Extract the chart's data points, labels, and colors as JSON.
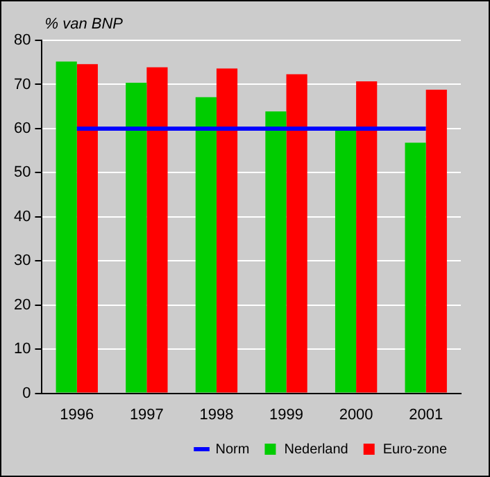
{
  "chart_data": {
    "type": "bar",
    "ylabel": "% van BNP",
    "categories": [
      "1996",
      "1997",
      "1998",
      "1999",
      "2000",
      "2001"
    ],
    "series": [
      {
        "name": "Nederland",
        "color": "#00cc00",
        "values": [
          75.2,
          70.4,
          67.1,
          63.9,
          59.6,
          56.8
        ]
      },
      {
        "name": "Euro-zone",
        "color": "#ff0000",
        "values": [
          74.6,
          73.9,
          73.6,
          72.3,
          70.7,
          68.8
        ]
      },
      {
        "name": "Norm",
        "type": "line",
        "color": "#0000ff",
        "values": [
          60,
          60,
          60,
          60,
          60,
          60
        ]
      }
    ],
    "ylim": [
      0,
      80
    ],
    "yticks": [
      0,
      10,
      20,
      30,
      40,
      50,
      60,
      70,
      80
    ],
    "grid": "y",
    "legend": "bottom right",
    "marker": "none",
    "line_style": "solid"
  }
}
